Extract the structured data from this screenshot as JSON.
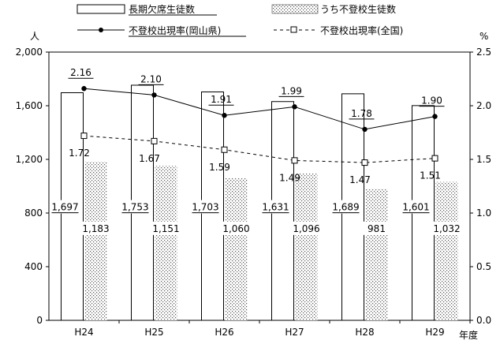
{
  "chart_data": {
    "type": "bar",
    "categories": [
      "H24",
      "H25",
      "H26",
      "H27",
      "H28",
      "H29"
    ],
    "series": [
      {
        "name": "長期欠席生徒数",
        "kind": "bar",
        "axis": "left",
        "values": [
          1697,
          1753,
          1703,
          1631,
          1689,
          1601
        ],
        "labels": [
          "1,697",
          "1,753",
          "1,703",
          "1,631",
          "1,689",
          "1,601"
        ]
      },
      {
        "name": "うち不登校生徒数",
        "kind": "bar",
        "axis": "left",
        "values": [
          1183,
          1151,
          1060,
          1096,
          981,
          1032
        ],
        "labels": [
          "1,183",
          "1,151",
          "1,060",
          "1,096",
          "981",
          "1,032"
        ]
      },
      {
        "name": "不登校出現率(岡山県)",
        "kind": "line",
        "axis": "right",
        "values": [
          2.16,
          2.1,
          1.91,
          1.99,
          1.78,
          1.9
        ],
        "labels": [
          "2.16",
          "2.10",
          "1.91",
          "1.99",
          "1.78",
          "1.90"
        ]
      },
      {
        "name": "不登校出現率(全国)",
        "kind": "line",
        "axis": "right",
        "values": [
          1.72,
          1.67,
          1.59,
          1.49,
          1.47,
          1.51
        ],
        "labels": [
          "1.72",
          "1.67",
          "1.59",
          "1.49",
          "1.47",
          "1.51"
        ]
      }
    ],
    "left_axis": {
      "unit": "人",
      "ylim": [
        0,
        2000
      ],
      "ticks": [
        "0",
        "400",
        "800",
        "1,200",
        "1,600",
        "2,000"
      ]
    },
    "right_axis": {
      "unit": "%",
      "ylim": [
        0,
        2.5
      ],
      "ticks": [
        "0.0",
        "0.5",
        "1.0",
        "1.5",
        "2.0",
        "2.5"
      ]
    },
    "xlabel": "年度",
    "legend_position": "top",
    "grid": false
  }
}
